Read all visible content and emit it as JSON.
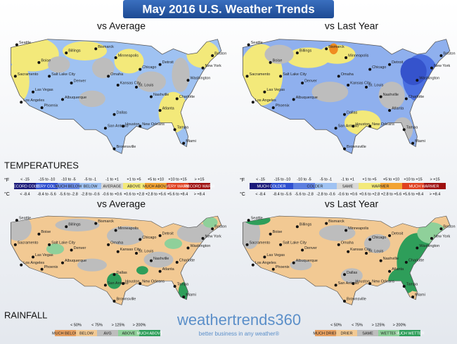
{
  "header": {
    "title": "May 2016 U.S. Weather Trends"
  },
  "cities": [
    "Seattle",
    "Billings",
    "Boise",
    "Sacramento",
    "Salt Lake City",
    "Las Vegas",
    "Los Angeles",
    "Phoenix",
    "Denver",
    "Albuquerque",
    "Bismarck",
    "Minneapolis",
    "Omaha",
    "Kansas City",
    "Dallas",
    "San Antonio",
    "Houston",
    "Brownsville",
    "Chicago",
    "Detroit",
    "St. Louis",
    "Nashville",
    "Atlanta",
    "New Orleans",
    "Tampa",
    "Miami",
    "Charlotte",
    "Washington",
    "New York",
    "Boston"
  ],
  "temperatures": {
    "label": "TEMPERATURES",
    "units": [
      "°F",
      "°C"
    ],
    "vs_average": {
      "title": "vs Average",
      "legend": {
        "f": [
          "< -15",
          "-15 to -10",
          "-10 to -5",
          "-5 to -1",
          "-1 to +1",
          "+1 to +5",
          "+5 to +10",
          "+10 to +15",
          "> +15"
        ],
        "labels": [
          "RECORD COLD",
          "VERY COLD",
          "MUCH BELOW",
          "BELOW",
          "AVERAGE",
          "ABOVE",
          "MUCH ABOVE",
          "VERY WARM",
          "RECORD WARM"
        ],
        "c": [
          "< -8.4",
          "-8.4 to -5.6",
          "-5.6 to -2.8",
          "-2.8 to -0.6",
          "-0.6 to +0.6",
          "+0.6 to +2.8",
          "+2.8 to +5.6",
          "+5.6 to +8.4",
          "> +8.4"
        ]
      }
    },
    "vs_last_year": {
      "title": "vs Last Year",
      "legend": {
        "f": [
          "< -15",
          "-15 to -10",
          "-10 to -5",
          "-5 to -1",
          "-1 to +1",
          "+1 to +5",
          "+5 to +10",
          "+10 to +15",
          "> +15"
        ],
        "labels": [
          "MUCH COLDER",
          "COLDER",
          "SAME",
          "WARMER",
          "MUCH WARMER"
        ],
        "c": [
          "< -8.4",
          "-8.4 to -5.6",
          "-5.6 to -2.8",
          "-2.8 to -0.6",
          "-0.6 to +0.6",
          "+0.6 to +2.8",
          "+2.8 to +5.6",
          "+5.6 to +8.4",
          "> +8.4"
        ]
      }
    }
  },
  "rainfall": {
    "label": "RAINFALL",
    "vs_average": {
      "title": "vs Average",
      "legend": {
        "thresholds": [
          "< 50%",
          "< 75%",
          "> 125%",
          "> 200%"
        ],
        "labels": [
          "MUCH BELOW",
          "BELOW",
          "AVG",
          "ABOVE",
          "MUCH ABOVE"
        ]
      }
    },
    "vs_last_year": {
      "title": "vs Last Year",
      "legend": {
        "thresholds": [
          "< 50%",
          "< 75%",
          "> 125%",
          "> 200%"
        ],
        "labels": [
          "MUCH DRIER",
          "DRIER",
          "SAME",
          "WETTER",
          "MUCH WETTER"
        ]
      }
    }
  },
  "logo": {
    "name": "weathertrends360",
    "tagline": "better business in any weather®"
  }
}
